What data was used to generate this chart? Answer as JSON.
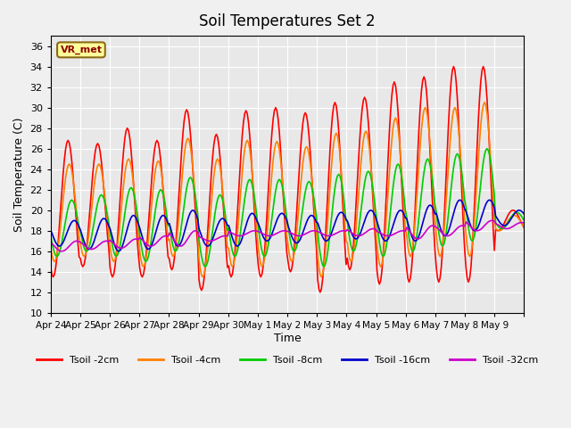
{
  "title": "Soil Temperatures Set 2",
  "xlabel": "Time",
  "ylabel": "Soil Temperature (C)",
  "ylim": [
    10,
    37
  ],
  "yticks": [
    10,
    12,
    14,
    16,
    18,
    20,
    22,
    24,
    26,
    28,
    30,
    32,
    34,
    36
  ],
  "x_labels": [
    "Apr 24",
    "Apr 25",
    "Apr 26",
    "Apr 27",
    "Apr 28",
    "Apr 29",
    "Apr 30",
    "May 1",
    "May 2",
    "May 3",
    "May 4",
    "May 5",
    "May 6",
    "May 7",
    "May 8",
    "May 9"
  ],
  "colors": {
    "Tsoil -2cm": "#ff0000",
    "Tsoil -4cm": "#ff8000",
    "Tsoil -8cm": "#00cc00",
    "Tsoil -16cm": "#0000cc",
    "Tsoil -32cm": "#cc00cc"
  },
  "legend_label_box": "VR_met",
  "background_color": "#e8e8e8",
  "plot_bg": "#e8e8e8",
  "n_days": 16,
  "pts_per_day": 24,
  "series": {
    "Tsoil -2cm": {
      "day_min": [
        13.5,
        14.5,
        13.5,
        13.5,
        14.2,
        12.2,
        13.5,
        13.5,
        14.0,
        12.0,
        14.2,
        12.8,
        13.0,
        13.0,
        13.0,
        18.0
      ],
      "day_max": [
        26.8,
        26.5,
        28.0,
        26.8,
        29.8,
        27.4,
        29.7,
        30.0,
        29.5,
        30.5,
        31.0,
        32.5,
        33.0,
        34.0,
        34.0,
        20.0
      ],
      "peak_hour": 14
    },
    "Tsoil -4cm": {
      "day_min": [
        15.0,
        15.5,
        15.0,
        14.5,
        15.5,
        13.5,
        14.5,
        14.5,
        15.0,
        13.5,
        15.0,
        14.5,
        15.5,
        15.5,
        15.5,
        18.0
      ],
      "day_max": [
        24.5,
        24.5,
        25.0,
        24.8,
        27.0,
        25.0,
        26.8,
        26.7,
        26.2,
        27.5,
        27.7,
        29.0,
        30.0,
        30.0,
        30.5,
        19.5
      ],
      "peak_hour": 15
    },
    "Tsoil -8cm": {
      "day_min": [
        15.5,
        16.0,
        15.5,
        15.0,
        16.0,
        14.5,
        15.5,
        15.5,
        16.0,
        14.5,
        16.0,
        15.5,
        16.0,
        16.5,
        17.0,
        18.2
      ],
      "day_max": [
        21.0,
        21.5,
        22.2,
        22.0,
        23.2,
        21.5,
        23.0,
        23.0,
        22.8,
        23.5,
        23.8,
        24.5,
        25.0,
        25.5,
        26.0,
        19.8
      ],
      "peak_hour": 17
    },
    "Tsoil -16cm": {
      "day_min": [
        16.5,
        16.2,
        16.0,
        16.2,
        16.5,
        16.5,
        16.5,
        17.0,
        16.8,
        17.0,
        17.2,
        17.0,
        17.0,
        17.5,
        18.0,
        18.5
      ],
      "day_max": [
        19.0,
        19.2,
        19.5,
        19.5,
        20.0,
        19.2,
        19.7,
        19.7,
        19.5,
        19.8,
        20.0,
        20.0,
        20.5,
        21.0,
        21.0,
        20.0
      ],
      "peak_hour": 19
    },
    "Tsoil -32cm": {
      "day_min": [
        16.0,
        16.2,
        16.3,
        16.5,
        16.5,
        17.0,
        17.5,
        17.5,
        17.5,
        17.5,
        17.5,
        17.5,
        17.2,
        17.5,
        18.0,
        18.2
      ],
      "day_max": [
        17.0,
        17.0,
        17.2,
        17.5,
        18.0,
        17.5,
        18.0,
        18.0,
        18.0,
        18.0,
        18.2,
        18.0,
        18.5,
        18.5,
        19.0,
        18.8
      ],
      "peak_hour": 21
    }
  }
}
